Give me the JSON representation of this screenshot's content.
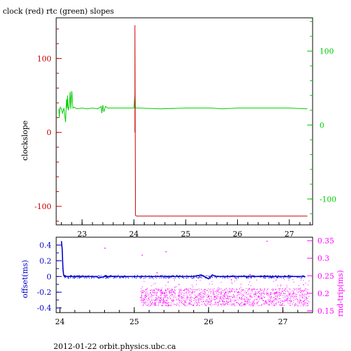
{
  "figure": {
    "title": "clock (red) rtc (green) slopes",
    "footer": "2012-01-22 orbit.physics.ubc.ca"
  },
  "colors": {
    "clock": "#cc0000",
    "rtc": "#00cc00",
    "offset": "#0000cc",
    "roundtrip": "#ff00ff",
    "axis": "#000000"
  },
  "chart_data": [
    {
      "type": "line",
      "title": "clock (red) rtc (green) slopes",
      "ylabel": "clockslope",
      "xlim": [
        22.5,
        27.45
      ],
      "ylim": [
        -125,
        155
      ],
      "ylim_right": [
        -135,
        145
      ],
      "xticks": [
        23,
        24,
        25,
        26,
        27
      ],
      "yticks_left": [
        -100,
        0,
        100
      ],
      "yticks_right": [
        -100,
        0,
        100
      ],
      "grid": false,
      "series": [
        {
          "name": "clock",
          "axis": "left",
          "x": [
            24.02,
            24.02,
            24.03,
            24.05,
            25.0,
            26.0,
            27.0,
            27.35
          ],
          "y": [
            0,
            145,
            -112,
            -113,
            -113,
            -113,
            -113,
            -113
          ]
        },
        {
          "name": "rtc",
          "axis": "right",
          "x": [
            22.55,
            22.56,
            22.57,
            22.58,
            22.6,
            22.62,
            22.65,
            22.68,
            22.7,
            22.71,
            22.72,
            22.73,
            22.75,
            22.77,
            22.78,
            22.8,
            22.82,
            22.85,
            22.9,
            23.0,
            23.1,
            23.2,
            23.3,
            23.37,
            23.38,
            23.4,
            23.42,
            23.45,
            23.5,
            23.6,
            23.7,
            23.8,
            23.9,
            24.0,
            24.02,
            24.03,
            24.1,
            24.5,
            25.0,
            25.5,
            25.7,
            26.0,
            26.5,
            27.0,
            27.35
          ],
          "y": [
            22,
            10,
            22,
            24,
            22,
            16,
            23,
            4,
            35,
            23,
            40,
            20,
            25,
            45,
            22,
            46,
            23,
            24,
            22,
            23,
            22,
            23,
            22,
            25,
            16,
            27,
            18,
            25,
            23,
            23,
            23,
            23,
            23,
            23,
            40,
            23,
            23,
            22,
            23,
            23,
            22,
            23,
            23,
            23,
            22
          ]
        }
      ]
    },
    {
      "type": "scatter",
      "ylabel": "offset(ms)",
      "ylabel_right": "rnd-trip(ms)",
      "xlim": [
        23.95,
        27.4
      ],
      "ylim": [
        -0.46,
        0.5
      ],
      "ylim_right": [
        0.145,
        0.36
      ],
      "xticks": [
        24,
        25,
        26,
        27
      ],
      "yticks_left": [
        -0.4,
        -0.2,
        0,
        0.2,
        0.4
      ],
      "yticks_right": [
        0.15,
        0.2,
        0.25,
        0.3,
        0.35
      ],
      "grid": false,
      "series": [
        {
          "name": "offset",
          "axis": "left",
          "x": [
            24.02,
            24.03,
            24.04,
            24.05,
            24.06,
            24.1,
            24.2,
            24.3,
            24.4,
            24.5,
            24.52,
            24.6,
            24.8,
            25.0,
            25.2,
            25.4,
            25.6,
            25.8,
            25.9,
            26.0,
            26.05,
            26.1,
            26.3,
            26.5,
            26.7,
            26.9,
            27.1,
            27.3
          ],
          "y": [
            0.45,
            0.35,
            0.1,
            0.02,
            0.0,
            0.0,
            0.0,
            0.0,
            0.0,
            0.0,
            -0.02,
            0.0,
            0.0,
            0.0,
            0.0,
            0.0,
            0.0,
            0.0,
            0.02,
            -0.03,
            0.02,
            0.0,
            0.0,
            0.0,
            0.0,
            0.0,
            0.0,
            0.0
          ]
        },
        {
          "name": "rnd-trip",
          "axis": "right",
          "x_range": [
            25.08,
            27.35
          ],
          "y_range": [
            0.165,
            0.215
          ],
          "points_x": [
            24.6,
            25.1,
            25.3,
            25.42,
            25.7,
            26.0,
            26.3,
            26.55,
            26.78,
            27.0
          ],
          "points_y": [
            0.33,
            0.31,
            0.26,
            0.32,
            0.245,
            0.25,
            0.24,
            0.255,
            0.35,
            0.245
          ]
        }
      ]
    }
  ]
}
